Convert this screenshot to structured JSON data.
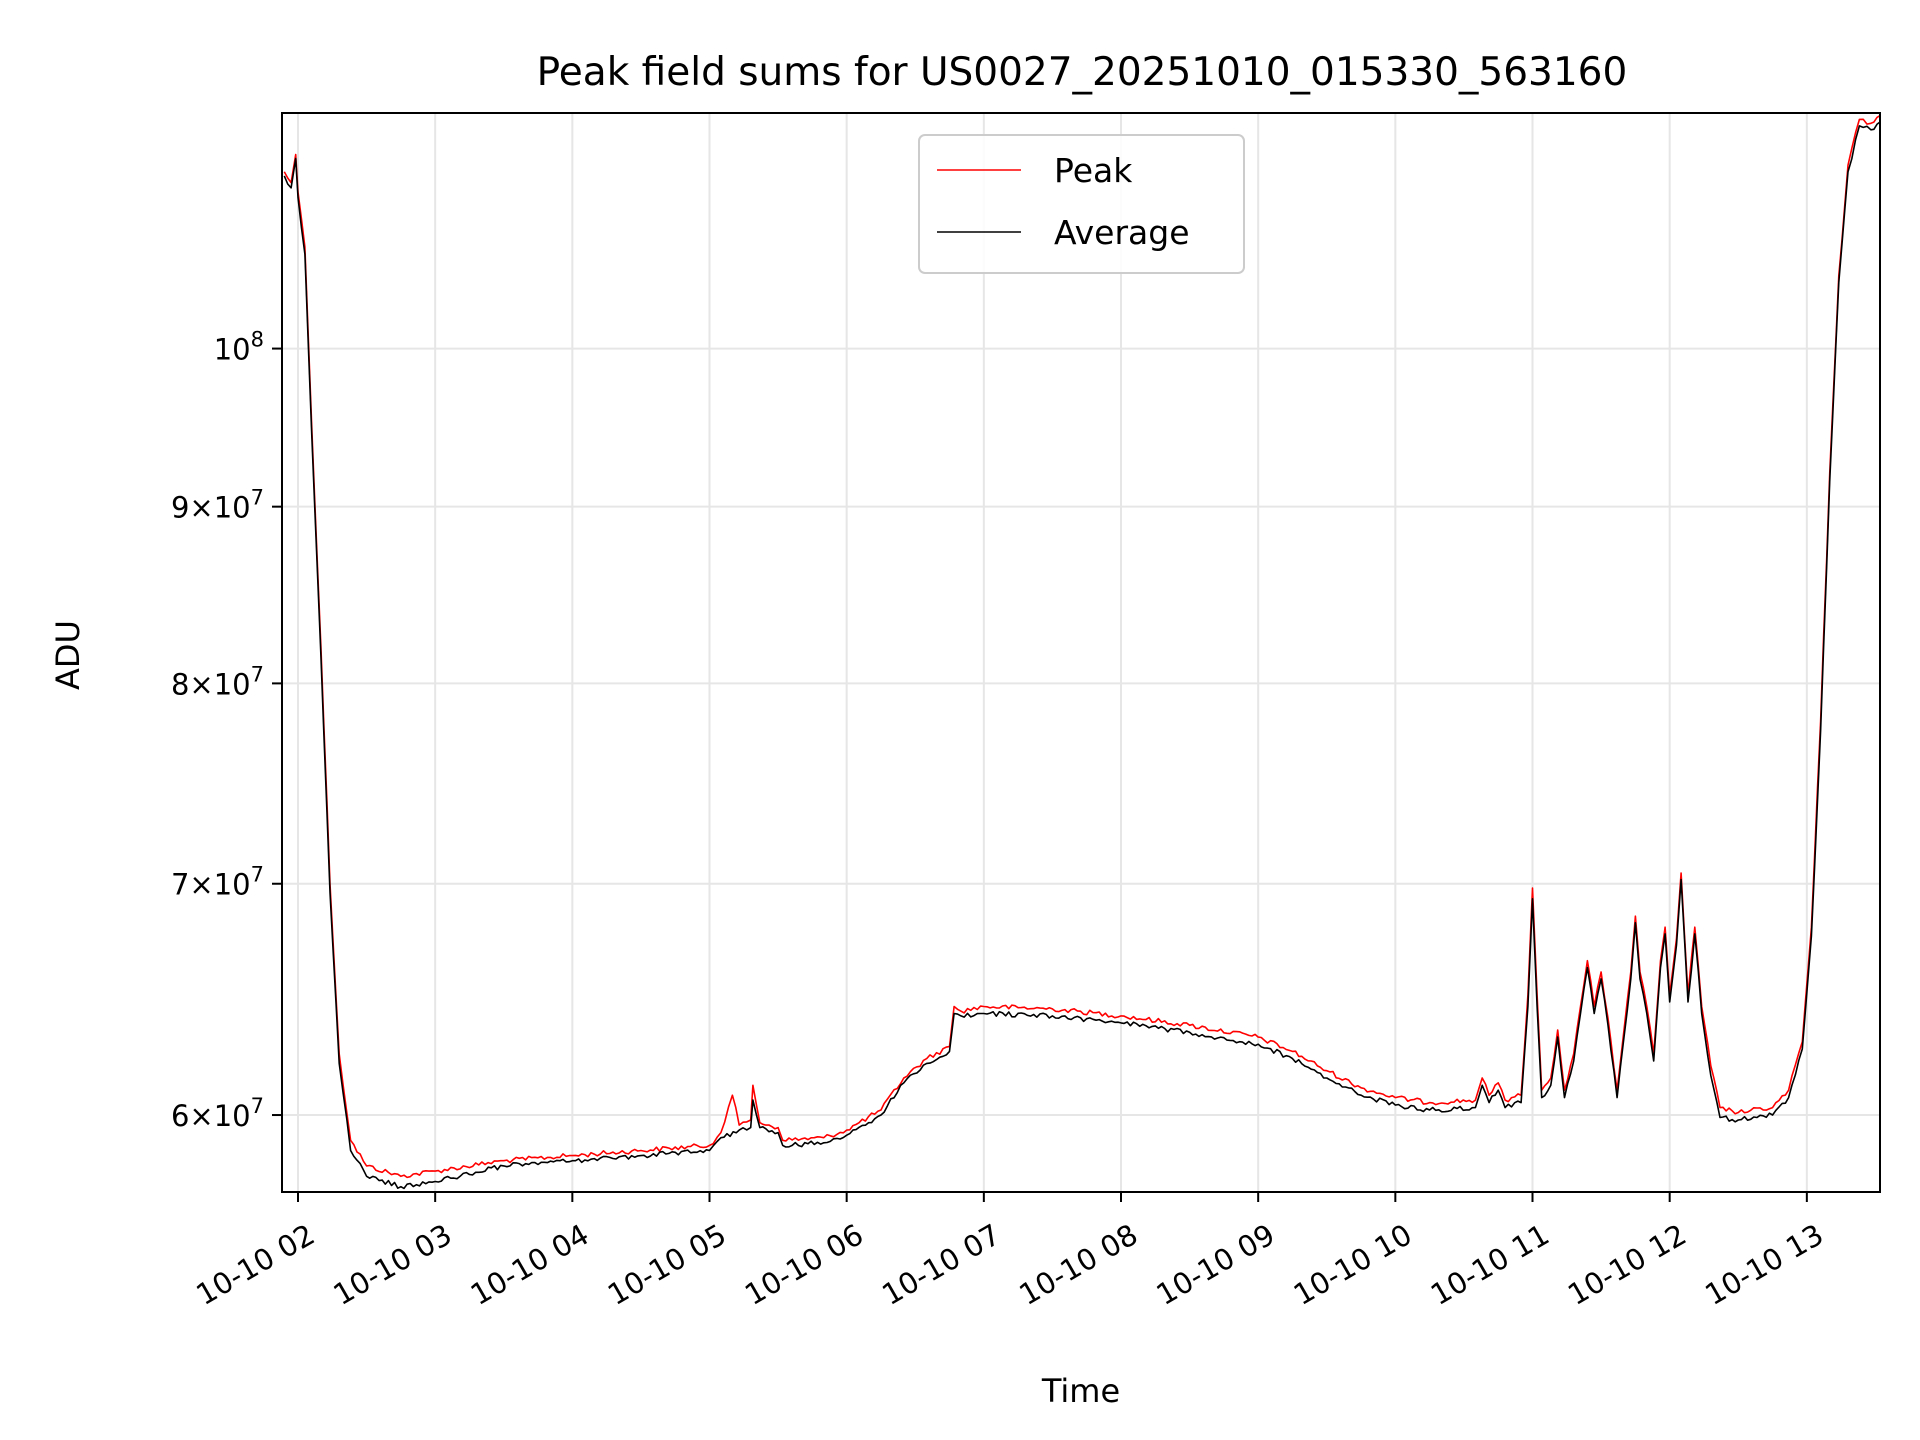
{
  "chart_data": {
    "type": "line",
    "title": "Peak field sums for US0027_20251010_015330_563160",
    "xlabel": "Time",
    "ylabel": "ADU",
    "yscale": "log",
    "grid": true,
    "legend_position": "upper center",
    "xlim": [
      "2025-10-10 01:53",
      "2025-10-10 13:32"
    ],
    "ylim": [
      57000000,
      117000000
    ],
    "x_ticks": [
      {
        "value": "2025-10-10 02:00",
        "label": "10-10 02"
      },
      {
        "value": "2025-10-10 03:00",
        "label": "10-10 03"
      },
      {
        "value": "2025-10-10 04:00",
        "label": "10-10 04"
      },
      {
        "value": "2025-10-10 05:00",
        "label": "10-10 05"
      },
      {
        "value": "2025-10-10 06:00",
        "label": "10-10 06"
      },
      {
        "value": "2025-10-10 07:00",
        "label": "10-10 07"
      },
      {
        "value": "2025-10-10 08:00",
        "label": "10-10 08"
      },
      {
        "value": "2025-10-10 09:00",
        "label": "10-10 09"
      },
      {
        "value": "2025-10-10 10:00",
        "label": "10-10 10"
      },
      {
        "value": "2025-10-10 11:00",
        "label": "10-10 11"
      },
      {
        "value": "2025-10-10 12:00",
        "label": "10-10 12"
      },
      {
        "value": "2025-10-10 13:00",
        "label": "10-10 13"
      }
    ],
    "y_ticks": [
      {
        "value": 60000000,
        "mantissa": "6",
        "exponent": "7"
      },
      {
        "value": 70000000,
        "mantissa": "7",
        "exponent": "7"
      },
      {
        "value": 80000000,
        "mantissa": "8",
        "exponent": "7"
      },
      {
        "value": 90000000,
        "mantissa": "9",
        "exponent": "7"
      },
      {
        "value": 100000000,
        "mantissa": "",
        "exponent": "8"
      }
    ],
    "series": [
      {
        "name": "Peak",
        "color": "#ff0000",
        "points": [
          [
            "2025-10-10 01:54",
            112500000
          ],
          [
            "2025-10-10 01:57",
            111700000
          ],
          [
            "2025-10-10 01:59",
            113800000
          ],
          [
            "2025-10-10 02:00",
            111000000
          ],
          [
            "2025-10-10 02:03",
            107000000
          ],
          [
            "2025-10-10 02:06",
            95000000
          ],
          [
            "2025-10-10 02:10",
            82000000
          ],
          [
            "2025-10-10 02:14",
            70000000
          ],
          [
            "2025-10-10 02:18",
            62500000
          ],
          [
            "2025-10-10 02:23",
            59000000
          ],
          [
            "2025-10-10 02:30",
            58000000
          ],
          [
            "2025-10-10 02:45",
            57600000
          ],
          [
            "2025-10-10 03:00",
            57800000
          ],
          [
            "2025-10-10 03:30",
            58200000
          ],
          [
            "2025-10-10 04:00",
            58400000
          ],
          [
            "2025-10-10 04:30",
            58600000
          ],
          [
            "2025-10-10 05:00",
            58800000
          ],
          [
            "2025-10-10 05:05",
            59300000
          ],
          [
            "2025-10-10 05:10",
            60800000
          ],
          [
            "2025-10-10 05:13",
            59600000
          ],
          [
            "2025-10-10 05:18",
            59800000
          ],
          [
            "2025-10-10 05:19",
            61200000
          ],
          [
            "2025-10-10 05:22",
            59700000
          ],
          [
            "2025-10-10 05:30",
            59500000
          ],
          [
            "2025-10-10 05:32",
            59000000
          ],
          [
            "2025-10-10 05:50",
            59100000
          ],
          [
            "2025-10-10 06:00",
            59400000
          ],
          [
            "2025-10-10 06:15",
            60200000
          ],
          [
            "2025-10-10 06:25",
            61500000
          ],
          [
            "2025-10-10 06:35",
            62300000
          ],
          [
            "2025-10-10 06:45",
            62800000
          ],
          [
            "2025-10-10 06:47",
            64500000
          ],
          [
            "2025-10-10 06:50",
            64300000
          ],
          [
            "2025-10-10 07:00",
            64500000
          ],
          [
            "2025-10-10 07:30",
            64400000
          ],
          [
            "2025-10-10 08:00",
            64100000
          ],
          [
            "2025-10-10 08:30",
            63700000
          ],
          [
            "2025-10-10 09:00",
            63200000
          ],
          [
            "2025-10-10 09:15",
            62600000
          ],
          [
            "2025-10-10 09:30",
            61800000
          ],
          [
            "2025-10-10 09:45",
            61100000
          ],
          [
            "2025-10-10 10:00",
            60700000
          ],
          [
            "2025-10-10 10:15",
            60500000
          ],
          [
            "2025-10-10 10:35",
            60600000
          ],
          [
            "2025-10-10 10:38",
            61500000
          ],
          [
            "2025-10-10 10:41",
            60800000
          ],
          [
            "2025-10-10 10:45",
            61300000
          ],
          [
            "2025-10-10 10:48",
            60600000
          ],
          [
            "2025-10-10 10:55",
            60800000
          ],
          [
            "2025-10-10 10:58",
            65000000
          ],
          [
            "2025-10-10 11:00",
            69800000
          ],
          [
            "2025-10-10 11:02",
            65000000
          ],
          [
            "2025-10-10 11:04",
            61000000
          ],
          [
            "2025-10-10 11:08",
            61500000
          ],
          [
            "2025-10-10 11:11",
            63500000
          ],
          [
            "2025-10-10 11:14",
            61000000
          ],
          [
            "2025-10-10 11:18",
            62500000
          ],
          [
            "2025-10-10 11:21",
            64500000
          ],
          [
            "2025-10-10 11:24",
            66500000
          ],
          [
            "2025-10-10 11:27",
            64500000
          ],
          [
            "2025-10-10 11:30",
            66000000
          ],
          [
            "2025-10-10 11:33",
            64000000
          ],
          [
            "2025-10-10 11:37",
            61000000
          ],
          [
            "2025-10-10 11:40",
            63500000
          ],
          [
            "2025-10-10 11:43",
            66000000
          ],
          [
            "2025-10-10 11:45",
            68500000
          ],
          [
            "2025-10-10 11:47",
            66000000
          ],
          [
            "2025-10-10 11:50",
            64500000
          ],
          [
            "2025-10-10 11:53",
            62500000
          ],
          [
            "2025-10-10 11:56",
            66500000
          ],
          [
            "2025-10-10 11:58",
            68000000
          ],
          [
            "2025-10-10 12:00",
            65000000
          ],
          [
            "2025-10-10 12:03",
            67500000
          ],
          [
            "2025-10-10 12:05",
            70500000
          ],
          [
            "2025-10-10 12:08",
            65000000
          ],
          [
            "2025-10-10 12:11",
            68000000
          ],
          [
            "2025-10-10 12:14",
            64500000
          ],
          [
            "2025-10-10 12:18",
            62000000
          ],
          [
            "2025-10-10 12:22",
            60300000
          ],
          [
            "2025-10-10 12:30",
            60100000
          ],
          [
            "2025-10-10 12:45",
            60300000
          ],
          [
            "2025-10-10 12:52",
            61000000
          ],
          [
            "2025-10-10 12:58",
            63000000
          ],
          [
            "2025-10-10 13:02",
            68000000
          ],
          [
            "2025-10-10 13:06",
            78000000
          ],
          [
            "2025-10-10 13:10",
            92000000
          ],
          [
            "2025-10-10 13:14",
            105000000
          ],
          [
            "2025-10-10 13:18",
            113000000
          ],
          [
            "2025-10-10 13:23",
            116500000
          ],
          [
            "2025-10-10 13:28",
            116200000
          ],
          [
            "2025-10-10 13:32",
            116800000
          ]
        ]
      },
      {
        "name": "Average",
        "color": "#000000",
        "points": [
          [
            "2025-10-10 01:54",
            112200000
          ],
          [
            "2025-10-10 01:57",
            111300000
          ],
          [
            "2025-10-10 01:59",
            113500000
          ],
          [
            "2025-10-10 02:00",
            110600000
          ],
          [
            "2025-10-10 02:03",
            106500000
          ],
          [
            "2025-10-10 02:06",
            94500000
          ],
          [
            "2025-10-10 02:10",
            81500000
          ],
          [
            "2025-10-10 02:14",
            69600000
          ],
          [
            "2025-10-10 02:18",
            62100000
          ],
          [
            "2025-10-10 02:23",
            58600000
          ],
          [
            "2025-10-10 02:30",
            57600000
          ],
          [
            "2025-10-10 02:45",
            57200000
          ],
          [
            "2025-10-10 03:00",
            57400000
          ],
          [
            "2025-10-10 03:30",
            58000000
          ],
          [
            "2025-10-10 04:00",
            58200000
          ],
          [
            "2025-10-10 04:30",
            58400000
          ],
          [
            "2025-10-10 05:00",
            58600000
          ],
          [
            "2025-10-10 05:05",
            59100000
          ],
          [
            "2025-10-10 05:13",
            59400000
          ],
          [
            "2025-10-10 05:18",
            59500000
          ],
          [
            "2025-10-10 05:19",
            60600000
          ],
          [
            "2025-10-10 05:22",
            59500000
          ],
          [
            "2025-10-10 05:30",
            59300000
          ],
          [
            "2025-10-10 05:32",
            58800000
          ],
          [
            "2025-10-10 05:50",
            58900000
          ],
          [
            "2025-10-10 06:00",
            59200000
          ],
          [
            "2025-10-10 06:15",
            60000000
          ],
          [
            "2025-10-10 06:25",
            61300000
          ],
          [
            "2025-10-10 06:35",
            62100000
          ],
          [
            "2025-10-10 06:45",
            62600000
          ],
          [
            "2025-10-10 06:47",
            64200000
          ],
          [
            "2025-10-10 06:50",
            64100000
          ],
          [
            "2025-10-10 07:00",
            64200000
          ],
          [
            "2025-10-10 07:30",
            64100000
          ],
          [
            "2025-10-10 08:00",
            63800000
          ],
          [
            "2025-10-10 08:30",
            63400000
          ],
          [
            "2025-10-10 09:00",
            62900000
          ],
          [
            "2025-10-10 09:15",
            62300000
          ],
          [
            "2025-10-10 09:30",
            61500000
          ],
          [
            "2025-10-10 09:45",
            60800000
          ],
          [
            "2025-10-10 10:00",
            60400000
          ],
          [
            "2025-10-10 10:15",
            60200000
          ],
          [
            "2025-10-10 10:35",
            60300000
          ],
          [
            "2025-10-10 10:38",
            61200000
          ],
          [
            "2025-10-10 10:41",
            60500000
          ],
          [
            "2025-10-10 10:45",
            61000000
          ],
          [
            "2025-10-10 10:48",
            60300000
          ],
          [
            "2025-10-10 10:55",
            60500000
          ],
          [
            "2025-10-10 10:58",
            64500000
          ],
          [
            "2025-10-10 11:00",
            69300000
          ],
          [
            "2025-10-10 11:02",
            64500000
          ],
          [
            "2025-10-10 11:04",
            60700000
          ],
          [
            "2025-10-10 11:08",
            61200000
          ],
          [
            "2025-10-10 11:11",
            63200000
          ],
          [
            "2025-10-10 11:14",
            60700000
          ],
          [
            "2025-10-10 11:18",
            62200000
          ],
          [
            "2025-10-10 11:21",
            64200000
          ],
          [
            "2025-10-10 11:24",
            66200000
          ],
          [
            "2025-10-10 11:27",
            64200000
          ],
          [
            "2025-10-10 11:30",
            65700000
          ],
          [
            "2025-10-10 11:33",
            63700000
          ],
          [
            "2025-10-10 11:37",
            60700000
          ],
          [
            "2025-10-10 11:40",
            63200000
          ],
          [
            "2025-10-10 11:43",
            65700000
          ],
          [
            "2025-10-10 11:45",
            68200000
          ],
          [
            "2025-10-10 11:47",
            65700000
          ],
          [
            "2025-10-10 11:50",
            64200000
          ],
          [
            "2025-10-10 11:53",
            62200000
          ],
          [
            "2025-10-10 11:56",
            66200000
          ],
          [
            "2025-10-10 11:58",
            67700000
          ],
          [
            "2025-10-10 12:00",
            64700000
          ],
          [
            "2025-10-10 12:03",
            67200000
          ],
          [
            "2025-10-10 12:05",
            70200000
          ],
          [
            "2025-10-10 12:08",
            64700000
          ],
          [
            "2025-10-10 12:11",
            67700000
          ],
          [
            "2025-10-10 12:14",
            64200000
          ],
          [
            "2025-10-10 12:18",
            61600000
          ],
          [
            "2025-10-10 12:22",
            59900000
          ],
          [
            "2025-10-10 12:30",
            59800000
          ],
          [
            "2025-10-10 12:45",
            60000000
          ],
          [
            "2025-10-10 12:52",
            60700000
          ],
          [
            "2025-10-10 12:58",
            62700000
          ],
          [
            "2025-10-10 13:02",
            67600000
          ],
          [
            "2025-10-10 13:06",
            77500000
          ],
          [
            "2025-10-10 13:10",
            91500000
          ],
          [
            "2025-10-10 13:14",
            104500000
          ],
          [
            "2025-10-10 13:18",
            112500000
          ],
          [
            "2025-10-10 13:23",
            116000000
          ],
          [
            "2025-10-10 13:28",
            115700000
          ],
          [
            "2025-10-10 13:32",
            116300000
          ]
        ]
      }
    ]
  }
}
